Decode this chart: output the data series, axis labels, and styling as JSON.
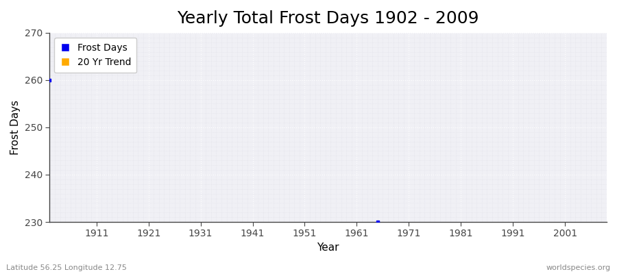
{
  "title": "Yearly Total Frost Days 1902 - 2009",
  "xlabel": "Year",
  "ylabel": "Frost Days",
  "xlim": [
    1902,
    2009
  ],
  "ylim": [
    230,
    270
  ],
  "yticks": [
    230,
    240,
    250,
    260,
    270
  ],
  "xticks": [
    1911,
    1921,
    1931,
    1941,
    1951,
    1961,
    1971,
    1981,
    1991,
    2001
  ],
  "data_points": [
    {
      "year": 1902,
      "value": 260
    },
    {
      "year": 1965,
      "value": 230
    }
  ],
  "point_color": "#0000ee",
  "trend_color": "#ffaa00",
  "legend_entries": [
    "Frost Days",
    "20 Yr Trend"
  ],
  "legend_colors": [
    "#0000ee",
    "#ffaa00"
  ],
  "figure_bg_color": "#ffffff",
  "plot_bg_color": "#f0f0f5",
  "grid_major_color": "#ffffff",
  "grid_minor_color": "#e0e0e8",
  "spine_color": "#444444",
  "title_fontsize": 18,
  "label_fontsize": 11,
  "tick_fontsize": 10,
  "footer_left": "Latitude 56.25 Longitude 12.75",
  "footer_right": "worldspecies.org",
  "footer_fontsize": 8,
  "footer_color": "#888888"
}
